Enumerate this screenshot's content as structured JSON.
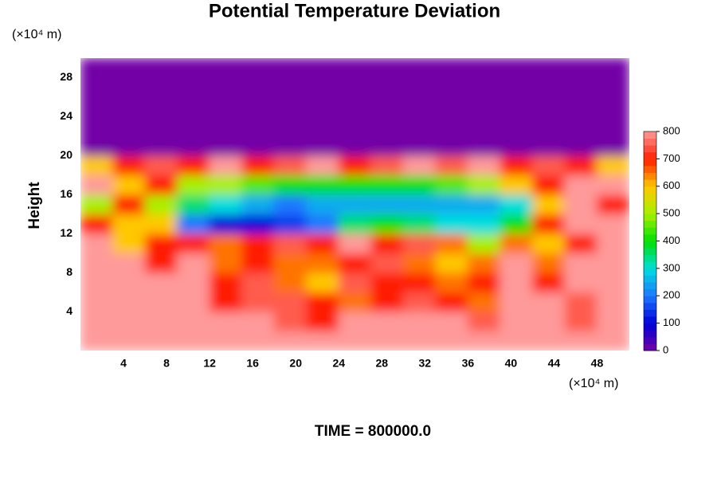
{
  "chart_data": {
    "type": "contour",
    "title": "Potential Temperature Deviation",
    "y_label": "Height",
    "x_unit": "(×10⁴ m)",
    "y_unit": "(×10⁴ m)",
    "time_label": "TIME = 800000.0",
    "xlim": [
      0,
      51
    ],
    "ylim": [
      0,
      30
    ],
    "xticks": [
      4,
      8,
      12,
      16,
      20,
      24,
      28,
      32,
      36,
      40,
      44,
      48
    ],
    "yticks": [
      4,
      8,
      12,
      16,
      20,
      24,
      28
    ],
    "x": [
      1.5,
      4.5,
      7.5,
      10.5,
      13.5,
      16.5,
      19.5,
      22.5,
      25.5,
      28.5,
      31.5,
      34.5,
      37.5,
      40.5,
      43.5,
      46.5,
      49.5
    ],
    "y": [
      1,
      3,
      5,
      7,
      9,
      11,
      13,
      15,
      17,
      19,
      21,
      23,
      25,
      27,
      29
    ],
    "z": [
      [
        800,
        800,
        800,
        800,
        800,
        800,
        800,
        800,
        800,
        800,
        800,
        800,
        800,
        800,
        800,
        800,
        800
      ],
      [
        800,
        800,
        800,
        800,
        800,
        800,
        750,
        700,
        800,
        800,
        800,
        800,
        750,
        800,
        800,
        750,
        800
      ],
      [
        800,
        800,
        800,
        800,
        700,
        750,
        750,
        700,
        650,
        700,
        750,
        700,
        650,
        800,
        800,
        750,
        800
      ],
      [
        800,
        800,
        800,
        800,
        700,
        750,
        650,
        600,
        750,
        700,
        700,
        650,
        700,
        800,
        700,
        800,
        800
      ],
      [
        800,
        800,
        700,
        800,
        650,
        700,
        650,
        650,
        700,
        750,
        650,
        600,
        650,
        800,
        650,
        800,
        800
      ],
      [
        800,
        600,
        700,
        700,
        650,
        700,
        750,
        700,
        800,
        700,
        750,
        650,
        500,
        650,
        600,
        700,
        800
      ],
      [
        700,
        600,
        600,
        200,
        100,
        100,
        150,
        200,
        350,
        400,
        350,
        300,
        300,
        400,
        700,
        800,
        800
      ],
      [
        500,
        700,
        500,
        350,
        300,
        250,
        200,
        250,
        250,
        250,
        250,
        250,
        250,
        300,
        600,
        800,
        700
      ],
      [
        800,
        600,
        700,
        500,
        500,
        450,
        400,
        400,
        400,
        400,
        400,
        450,
        500,
        600,
        700,
        800,
        800
      ],
      [
        600,
        700,
        750,
        700,
        800,
        700,
        750,
        800,
        700,
        750,
        800,
        750,
        800,
        700,
        750,
        700,
        600
      ],
      [
        0,
        0,
        0,
        0,
        0,
        0,
        0,
        0,
        0,
        0,
        0,
        0,
        0,
        0,
        0,
        0,
        0
      ],
      [
        0,
        0,
        0,
        0,
        0,
        0,
        0,
        0,
        0,
        0,
        0,
        0,
        0,
        0,
        0,
        0,
        0
      ],
      [
        0,
        0,
        0,
        0,
        0,
        0,
        0,
        0,
        0,
        0,
        0,
        0,
        0,
        0,
        0,
        0,
        0
      ],
      [
        0,
        0,
        0,
        0,
        0,
        0,
        0,
        0,
        0,
        0,
        0,
        0,
        0,
        0,
        0,
        0,
        0
      ],
      [
        0,
        0,
        0,
        0,
        0,
        0,
        0,
        0,
        0,
        0,
        0,
        0,
        0,
        0,
        0,
        0,
        0
      ]
    ],
    "clim": [
      0,
      800
    ],
    "cticks": [
      0,
      100,
      200,
      300,
      400,
      500,
      600,
      700,
      800
    ],
    "colors": [
      "#7200a6",
      "#0000d8",
      "#1e78ff",
      "#00dede",
      "#00e000",
      "#a8f000",
      "#ffc800",
      "#ff1e00",
      "#ff9a9a"
    ]
  }
}
